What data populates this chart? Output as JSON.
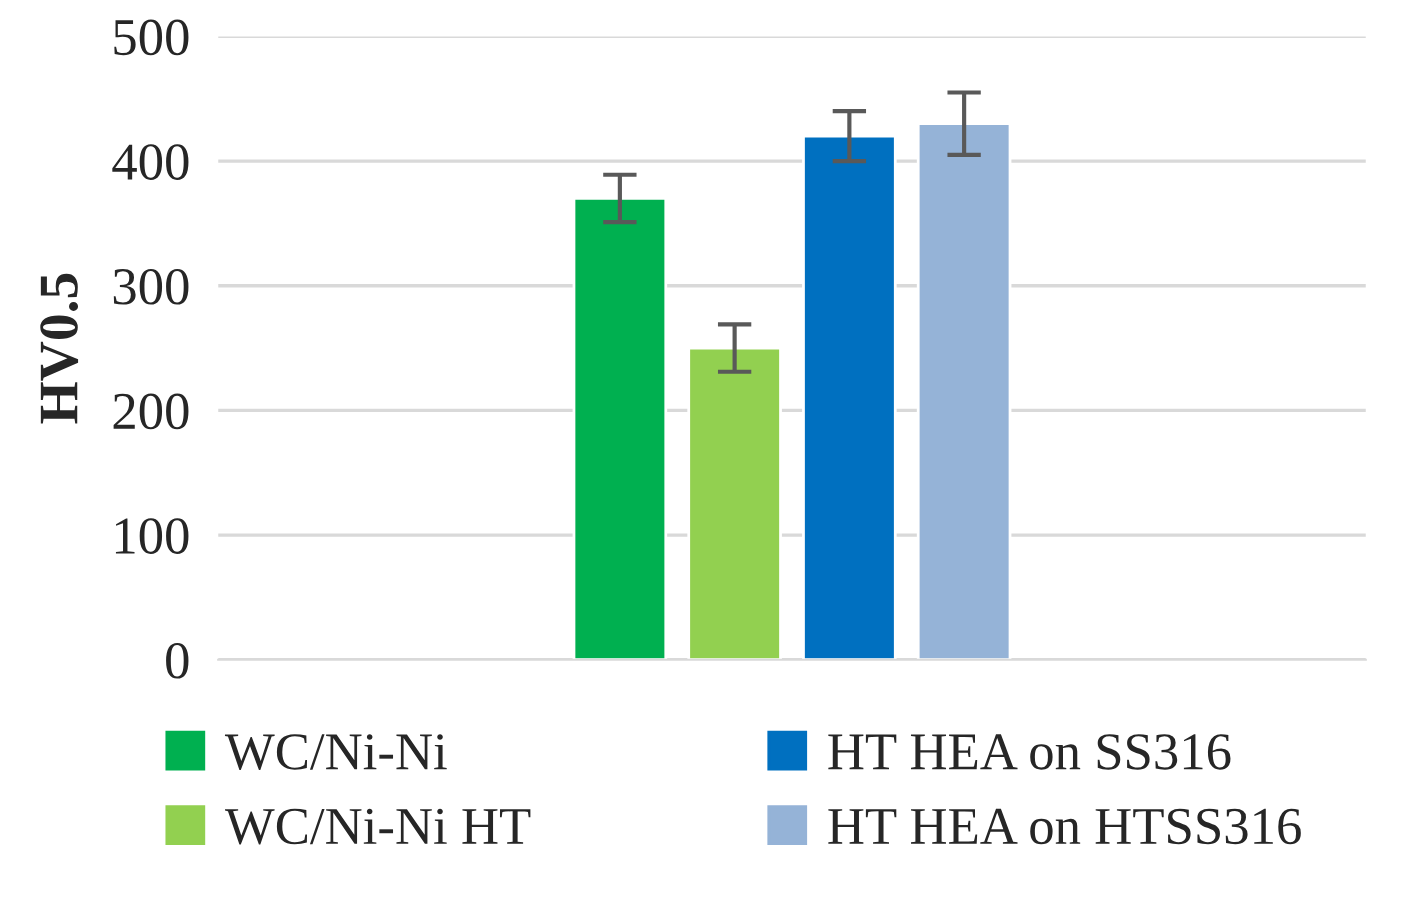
{
  "chart_data": {
    "type": "bar",
    "ylabel": "HV0.5",
    "categories": [
      null
    ],
    "series": [
      {
        "name": "WC/Ni-Ni",
        "color": "#00b050",
        "values": [
          370
        ],
        "errors": [
          19
        ]
      },
      {
        "name": "WC/Ni-Ni HT",
        "color": "#92d050",
        "values": [
          250
        ],
        "errors": [
          19
        ]
      },
      {
        "name": "HT HEA on SS316",
        "color": "#0070c0",
        "values": [
          420
        ],
        "errors": [
          20
        ]
      },
      {
        "name": "HT HEA on HTSS316",
        "color": "#95b3d7",
        "values": [
          430
        ],
        "errors": [
          25
        ]
      }
    ],
    "ylim": [
      0,
      500
    ],
    "yticks": [
      0,
      100,
      200,
      300,
      400,
      500
    ],
    "grid": "y",
    "legend": "bottom"
  }
}
